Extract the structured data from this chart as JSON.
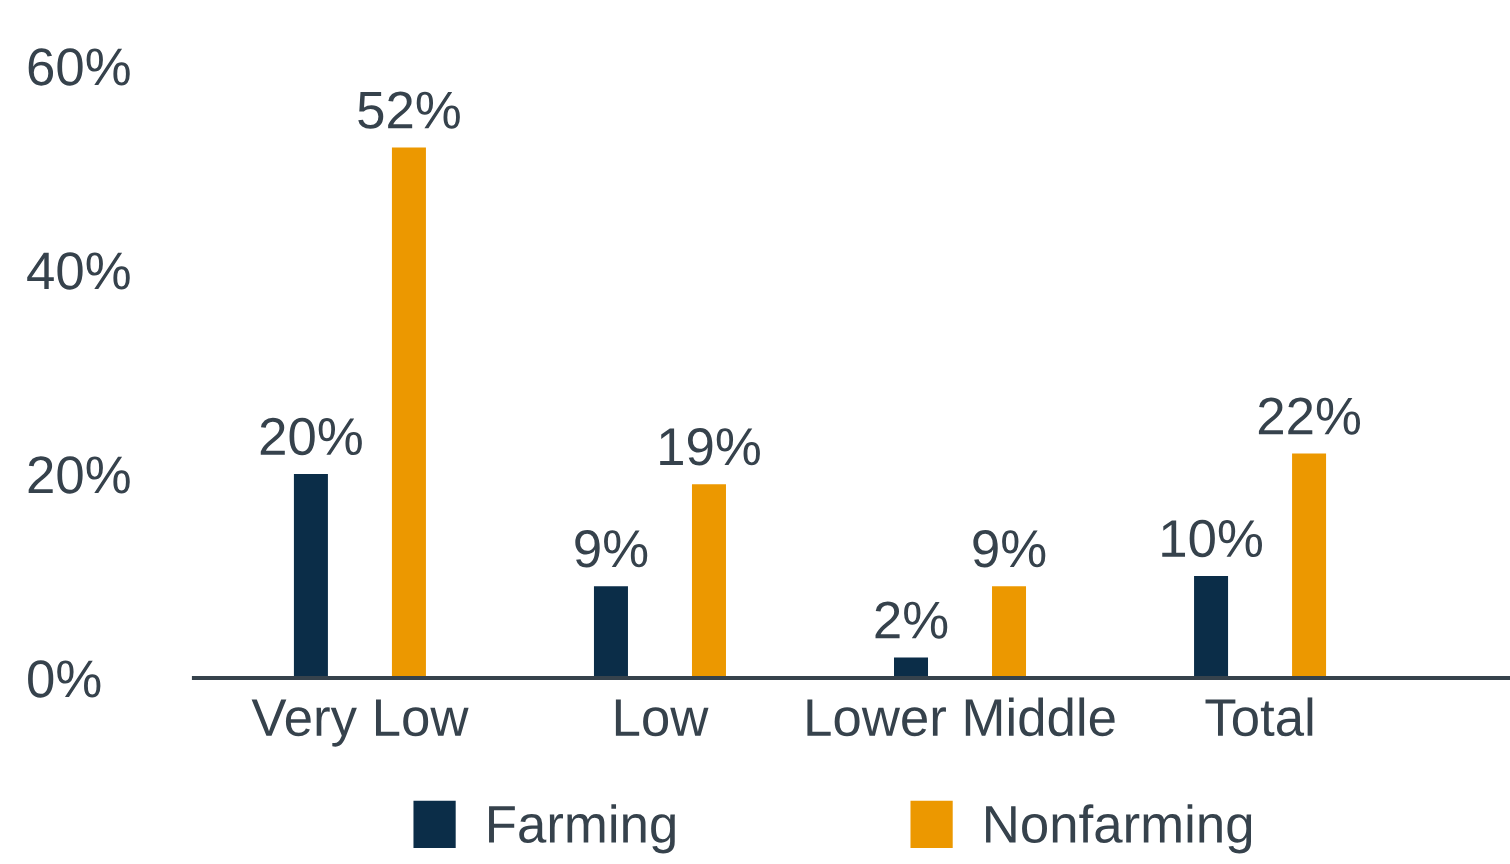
{
  "chart_data": {
    "type": "bar",
    "categories": [
      "Very Low",
      "Low",
      "Lower Middle",
      "Total"
    ],
    "series": [
      {
        "name": "Farming",
        "color": "#0b2d48",
        "values": [
          20,
          9,
          2,
          10
        ],
        "value_labels": [
          "20%",
          "9%",
          "2%",
          "10%"
        ]
      },
      {
        "name": "Nonfarming",
        "color": "#ec9800",
        "values": [
          52,
          19,
          9,
          22
        ],
        "value_labels": [
          "52%",
          "19%",
          "9%",
          "22%"
        ]
      }
    ],
    "ylim": [
      0,
      60
    ],
    "yticks": [
      {
        "value": 0,
        "label": "0%"
      },
      {
        "value": 20,
        "label": "20%"
      },
      {
        "value": 40,
        "label": "40%"
      },
      {
        "value": 60,
        "label": "60%"
      }
    ],
    "legend": "bottom"
  }
}
